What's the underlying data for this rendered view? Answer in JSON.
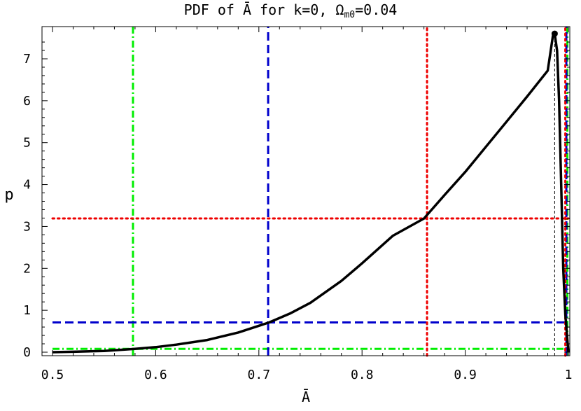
{
  "chart_data": {
    "type": "line",
    "title_prefix": "PDF of Ā for k=0, Ω",
    "title_subscript": "m0",
    "title_suffix": "=0.04",
    "xlabel": "Ā",
    "ylabel": "p",
    "xlim": [
      0.5,
      1.0
    ],
    "ylim": [
      0,
      7.6
    ],
    "x_ticks": [
      0.5,
      0.6,
      0.7,
      0.8,
      0.9,
      1.0
    ],
    "x_tick_labels": [
      "0.5",
      "0.6",
      "0.7",
      "0.8",
      "0.9",
      "1"
    ],
    "y_ticks": [
      0,
      1,
      2,
      3,
      4,
      5,
      6,
      7
    ],
    "y_tick_labels": [
      "0",
      "1",
      "2",
      "3",
      "4",
      "5",
      "6",
      "7"
    ],
    "grid": false,
    "series": [
      {
        "color": "#000000",
        "style": "solid",
        "points": [
          [
            0.5,
            0.0
          ],
          [
            0.52,
            0.01
          ],
          [
            0.55,
            0.03
          ],
          [
            0.58,
            0.08
          ],
          [
            0.6,
            0.12
          ],
          [
            0.62,
            0.18
          ],
          [
            0.65,
            0.29
          ],
          [
            0.68,
            0.47
          ],
          [
            0.7,
            0.63
          ],
          [
            0.71,
            0.71
          ],
          [
            0.73,
            0.92
          ],
          [
            0.75,
            1.18
          ],
          [
            0.78,
            1.7
          ],
          [
            0.8,
            2.12
          ],
          [
            0.83,
            2.78
          ],
          [
            0.86,
            3.19
          ],
          [
            0.88,
            3.75
          ],
          [
            0.9,
            4.3
          ],
          [
            0.92,
            4.9
          ],
          [
            0.94,
            5.5
          ],
          [
            0.96,
            6.1
          ],
          [
            0.98,
            6.72
          ],
          [
            0.985,
            7.55
          ],
          [
            0.9867,
            7.6
          ],
          [
            0.989,
            7.2
          ],
          [
            0.991,
            6.0
          ],
          [
            0.993,
            4.0
          ],
          [
            0.995,
            2.0
          ],
          [
            0.997,
            0.9
          ],
          [
            0.999,
            0.3
          ],
          [
            1.0,
            0.0
          ]
        ]
      }
    ],
    "peak_marker": {
      "x": 0.9867,
      "y": 7.6,
      "color": "#000000"
    },
    "reference_lines": [
      {
        "orientation": "vertical",
        "value": 0.578,
        "color": "#00ee00",
        "style": "dashdot"
      },
      {
        "orientation": "vertical",
        "value": 0.999,
        "color": "#00ee00",
        "style": "dashdot"
      },
      {
        "orientation": "horizontal",
        "value": 0.08,
        "color": "#00ee00",
        "style": "dashdot"
      },
      {
        "orientation": "vertical",
        "value": 0.709,
        "color": "#0000cc",
        "style": "dashed"
      },
      {
        "orientation": "vertical",
        "value": 0.998,
        "color": "#0000cc",
        "style": "dashed"
      },
      {
        "orientation": "horizontal",
        "value": 0.71,
        "color": "#0000cc",
        "style": "dashed"
      },
      {
        "orientation": "vertical",
        "value": 0.863,
        "color": "#ee0000",
        "style": "dotted"
      },
      {
        "orientation": "vertical",
        "value": 0.997,
        "color": "#ee0000",
        "style": "dotted"
      },
      {
        "orientation": "horizontal",
        "value": 3.19,
        "color": "#ee0000",
        "style": "dotted"
      },
      {
        "orientation": "vertical",
        "value": 0.9867,
        "color": "#000000",
        "style": "thin-dashed"
      }
    ]
  }
}
